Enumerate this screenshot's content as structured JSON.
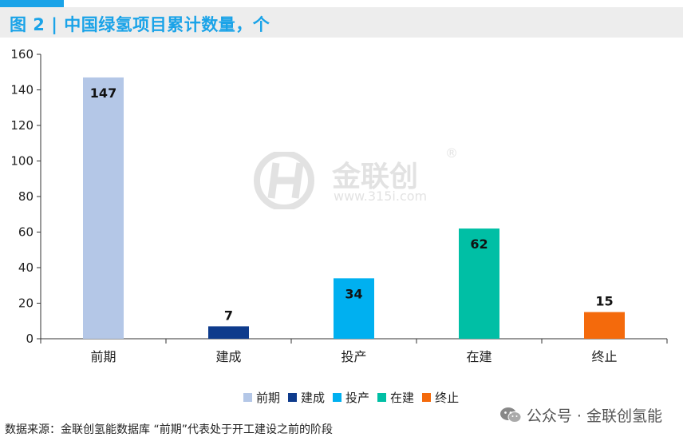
{
  "header": {
    "title": "图 2 | 中国绿氢项目累计数量，个"
  },
  "chart_data": {
    "type": "bar",
    "categories": [
      "前期",
      "建成",
      "投产",
      "在建",
      "终止"
    ],
    "values": [
      147,
      7,
      34,
      62,
      15
    ],
    "colors": [
      "#b4c7e7",
      "#0e3b8c",
      "#00b0f0",
      "#00bfa5",
      "#f46a0c"
    ],
    "ylim": [
      0,
      160
    ],
    "yticks": [
      0,
      20,
      40,
      60,
      80,
      100,
      120,
      140,
      160
    ],
    "legend_position": "bottom",
    "grid": false
  },
  "legend": {
    "items": [
      {
        "label": "前期",
        "color": "#b4c7e7"
      },
      {
        "label": "建成",
        "color": "#0e3b8c"
      },
      {
        "label": "投产",
        "color": "#00b0f0"
      },
      {
        "label": "在建",
        "color": "#00bfa5"
      },
      {
        "label": "终止",
        "color": "#f46a0c"
      }
    ]
  },
  "footer": {
    "source": "数据来源：金联创氢能数据库   “前期”代表处于开工建设之前的阶段",
    "account": "公众号 · 金联创氢能"
  },
  "watermark": {
    "brand": "金联创",
    "registered": "®",
    "url": "www.315i.com"
  }
}
